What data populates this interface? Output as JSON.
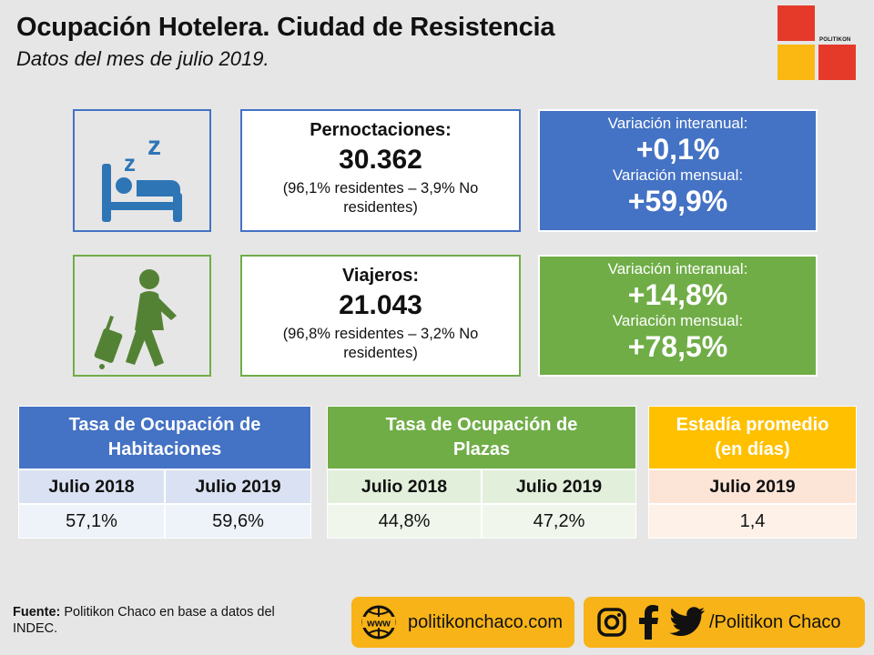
{
  "header": {
    "title": "Ocupación Hotelera. Ciudad de Resistencia",
    "subtitle": "Datos del mes de julio 2019."
  },
  "logo": {
    "text": "POLITIKON",
    "colors": {
      "red": "#e53a2a",
      "yellow": "#fbb812"
    }
  },
  "pernoctaciones": {
    "icon": "sleeping-bed-icon",
    "label": "Pernoctaciones:",
    "value": "30.362",
    "detail": "(96,1% residentes – 3,9% No residentes)",
    "interanual_label": "Variación interanual:",
    "interanual_value": "+0,1%",
    "mensual_label": "Variación mensual:",
    "mensual_value": "+59,9%"
  },
  "viajeros": {
    "icon": "traveler-with-suitcase-icon",
    "label": "Viajeros:",
    "value": "21.043",
    "detail": "(96,8% residentes – 3,2% No residentes)",
    "interanual_label": "Variación interanual:",
    "interanual_value": "+14,8%",
    "mensual_label": "Variación mensual:",
    "mensual_value": "+78,5%"
  },
  "tables": {
    "habitaciones": {
      "title_line1": "Tasa de Ocupación de",
      "title_line2": "Habitaciones",
      "columns": [
        "Julio 2018",
        "Julio 2019"
      ],
      "values": [
        "57,1%",
        "59,6%"
      ]
    },
    "plazas": {
      "title_line1": "Tasa de Ocupación de",
      "title_line2": "Plazas",
      "columns": [
        "Julio 2018",
        "Julio 2019"
      ],
      "values": [
        "44,8%",
        "47,2%"
      ]
    },
    "estadia": {
      "title_line1": "Estadía promedio",
      "title_line2": "(en días)",
      "columns": [
        "Julio 2019"
      ],
      "values": [
        "1,4"
      ]
    }
  },
  "colors": {
    "blue": "#4472c4",
    "green": "#70ad47",
    "orange": "#ffc000",
    "icon_blue": "#2e75b6",
    "icon_green": "#548235"
  },
  "footer": {
    "fuente_label": "Fuente:",
    "fuente_text": " Politikon Chaco en base a datos del INDEC.",
    "web_icon": "www-globe-icon",
    "web_text": "politikonchaco.com",
    "social_icons": [
      "instagram-icon",
      "facebook-icon",
      "twitter-icon"
    ],
    "social_text": "/Politikon Chaco"
  }
}
